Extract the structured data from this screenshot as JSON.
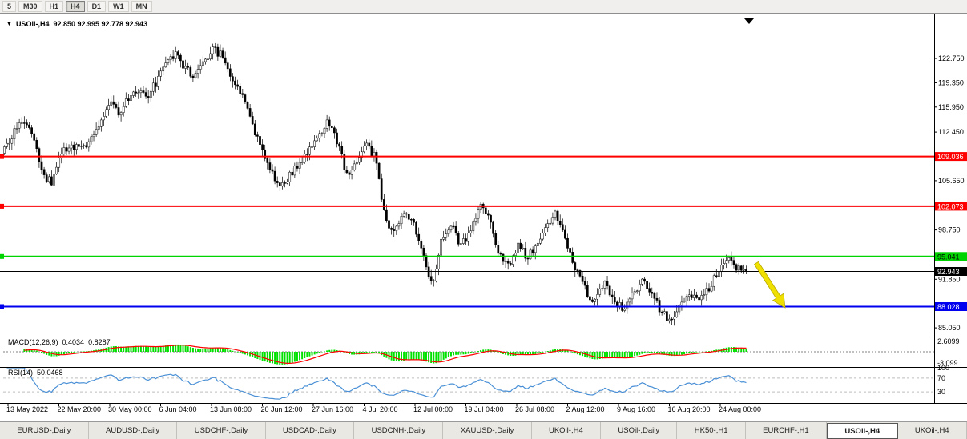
{
  "toolbar": {
    "timeframes": [
      {
        "label": "5",
        "active": false
      },
      {
        "label": "M30",
        "active": false
      },
      {
        "label": "H1",
        "active": false
      },
      {
        "label": "H4",
        "active": true
      },
      {
        "label": "D1",
        "active": false
      },
      {
        "label": "W1",
        "active": false
      },
      {
        "label": "MN",
        "active": false
      }
    ]
  },
  "chart": {
    "title_symbol": "USOil-,H4",
    "title_ohlc": "92.850 92.995 92.778 92.943"
  },
  "chart_data": {
    "type": "candlestick",
    "symbol": "USOil-",
    "timeframe": "H4",
    "open": 92.85,
    "high": 92.995,
    "low": 92.778,
    "close": 92.943,
    "x_labels": [
      "13 May 2022",
      "22 May 20:00",
      "30 May 00:00",
      "6 Jun 04:00",
      "13 Jun 08:00",
      "20 Jun 12:00",
      "27 Jun 16:00",
      "4 Jul 20:00",
      "12 Jul 00:00",
      "19 Jul 04:00",
      "26 Jul 08:00",
      "2 Aug 12:00",
      "9 Aug 16:00",
      "16 Aug 20:00",
      "24 Aug 00:00"
    ],
    "y_ticks": [
      "122.750",
      "119.350",
      "115.950",
      "112.450",
      "105.650",
      "98.750",
      "91.850",
      "85.050"
    ],
    "y_range": [
      83.9,
      127.8
    ],
    "levels": [
      {
        "name": "resistance-upper",
        "price": 109.036,
        "label": "109.036",
        "color": "#fe0000",
        "text": "#ffffff",
        "width": 2
      },
      {
        "name": "resistance-lower",
        "price": 102.073,
        "label": "102.073",
        "color": "#fe0000",
        "text": "#ffffff",
        "width": 2
      },
      {
        "name": "support-green",
        "price": 95.041,
        "label": "95.041",
        "color": "#00d400",
        "text": "#000000",
        "width": 2
      },
      {
        "name": "current-price",
        "price": 92.943,
        "label": "92.943",
        "color": "#000000",
        "text": "#ffffff",
        "width": 1
      },
      {
        "name": "support-blue",
        "price": 88.028,
        "label": "88.028",
        "color": "#0000ee",
        "text": "#ffffff",
        "width": 2
      }
    ],
    "candle_count": 300,
    "price_path": [
      110.0,
      112.5,
      114.5,
      112.0,
      106.5,
      105.5,
      109.5,
      110.5,
      110.0,
      111.5,
      113.5,
      116.5,
      115.0,
      117.0,
      118.5,
      117.5,
      119.5,
      122.0,
      123.5,
      121.5,
      120.0,
      122.5,
      124.0,
      123.0,
      119.5,
      117.5,
      113.5,
      110.0,
      107.0,
      104.5,
      106.5,
      108.0,
      110.0,
      112.0,
      113.8,
      111.0,
      106.5,
      108.5,
      110.5,
      109.0,
      100.5,
      98.0,
      101.5,
      99.5,
      95.5,
      91.0,
      97.5,
      99.5,
      96.5,
      98.5,
      102.0,
      100.0,
      95.5,
      93.8,
      96.5,
      95.0,
      96.8,
      99.0,
      101.0,
      97.5,
      93.5,
      90.5,
      88.5,
      91.5,
      89.5,
      87.5,
      89.5,
      92.0,
      90.0,
      87.5,
      86.0,
      88.5,
      90.0,
      89.0,
      90.5,
      93.0,
      95.0,
      93.5,
      92.9
    ],
    "indicators": {
      "macd": {
        "label": "MACD(12,26,9)",
        "value_main": "0.4034",
        "value_signal": "0.8287",
        "scale_max": "2.6099",
        "scale_min": "-3.099",
        "hist_color": "#00e100",
        "signal_color": "#ff0000"
      },
      "rsi": {
        "label": "RSI(14)",
        "value": "50.0468",
        "levels": [
          "100",
          "70",
          "30"
        ],
        "line_color": "#4a90d6"
      }
    },
    "annotations": [
      {
        "name": "sell-direction-arrow",
        "color": "#f0e000",
        "direction": "down-right"
      }
    ]
  },
  "tabs": [
    {
      "label": "EURUSD-,Daily",
      "active": false
    },
    {
      "label": "AUDUSD-,Daily",
      "active": false
    },
    {
      "label": "USDCHF-,Daily",
      "active": false
    },
    {
      "label": "USDCAD-,Daily",
      "active": false
    },
    {
      "label": "USDCNH-,Daily",
      "active": false
    },
    {
      "label": "XAUUSD-,Daily",
      "active": false
    },
    {
      "label": "UKOil-,H4",
      "active": false
    },
    {
      "label": "USOil-,Daily",
      "active": false
    },
    {
      "label": "HK50-,H1",
      "active": false
    },
    {
      "label": "EURCHF-,H1",
      "active": false
    },
    {
      "label": "USOil-,H4",
      "active": true
    },
    {
      "label": "UKOil-,H4",
      "active": false
    }
  ]
}
